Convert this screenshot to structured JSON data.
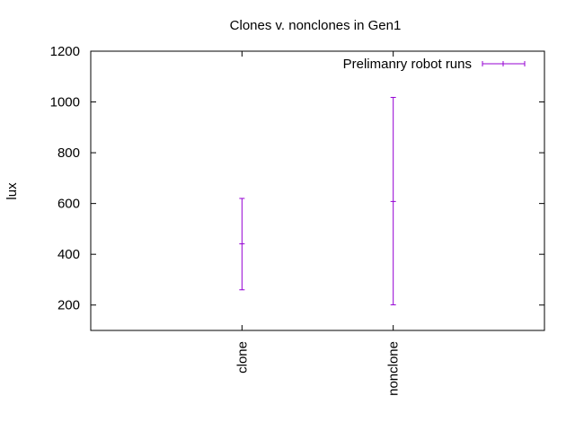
{
  "chart_data": {
    "type": "errorbar",
    "title": "Clones v. nonclones in Gen1",
    "xlabel": "",
    "ylabel": "lux",
    "ylim": [
      100,
      1200
    ],
    "yticks": [
      200,
      400,
      600,
      800,
      1000,
      1200
    ],
    "categories": [
      "clone",
      "nonclone"
    ],
    "x_positions": [
      1,
      2
    ],
    "xlim": [
      0,
      3
    ],
    "series": [
      {
        "name": "Prelimanry robot runs",
        "color": "#9400d3",
        "points": [
          {
            "category": "clone",
            "y": 441,
            "low": 260,
            "high": 620
          },
          {
            "category": "nonclone",
            "y": 608,
            "low": 201,
            "high": 1018
          }
        ]
      }
    ],
    "legend_position": "top-right",
    "grid": false
  }
}
